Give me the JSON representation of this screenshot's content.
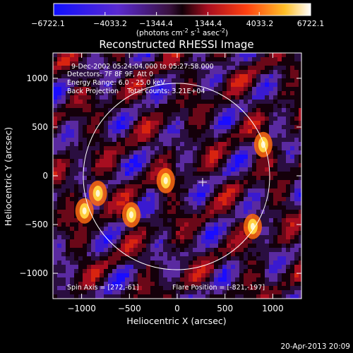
{
  "colorbar": {
    "ticks": [
      "−6722.1",
      "−4033.2",
      "−1344.4",
      "1344.4",
      "4033.2",
      "6722.1"
    ],
    "units_main": "(photons cm",
    "units_sup1": "-2",
    "units_mid1": " s",
    "units_sup2": "-1",
    "units_mid2": " asec",
    "units_sup3": "-2",
    "units_end": ")",
    "range": [
      -6722.1,
      6722.1
    ]
  },
  "annotations": {
    "time": "9-Dec-2002 05:24:04.000 to 05:27:58.000",
    "detectors": "Detectors: 7F 8F 9F, Att 0",
    "energy": "Energy Range: 6.0 - 25.0 keV",
    "method": "Back Projection    Total counts: 3.21E+04",
    "spin_axis": "Spin Axis = [272,-61]",
    "flare_position": "Flare Position = [-821,-197]"
  },
  "footer": {
    "timestamp": "20-Apr-2013 20:09"
  },
  "chart_data": {
    "type": "heatmap",
    "title": "Reconstructed RHESSI Image",
    "xlabel": "Heliocentric X (arcsec)",
    "ylabel": "Heliocentric Y (arcsec)",
    "xlim": [
      -1300,
      1300
    ],
    "ylim": [
      -1260,
      1260
    ],
    "xticks": [
      -1000,
      -500,
      0,
      500,
      1000
    ],
    "yticks": [
      1000,
      500,
      0,
      -500,
      -1000
    ],
    "xticklabels": [
      "−1000",
      "−500",
      "0",
      "500",
      "1000"
    ],
    "yticklabels": [
      "1000",
      "500",
      "0",
      "−500",
      "−1000"
    ],
    "colormap": "blue-purple-red-yellow-white",
    "solar_limb_radius_arcsec": 975,
    "spin_axis_marker": [
      272,
      -61
    ],
    "bright_sources": [
      {
        "x": -970,
        "y": -360
      },
      {
        "x": -830,
        "y": -180
      },
      {
        "x": -480,
        "y": -400
      },
      {
        "x": -120,
        "y": -50
      },
      {
        "x": 900,
        "y": 320
      },
      {
        "x": 790,
        "y": -520
      }
    ]
  }
}
